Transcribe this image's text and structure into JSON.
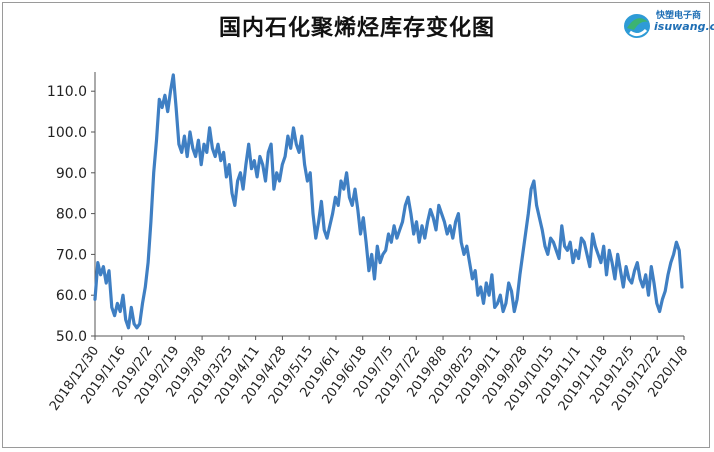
{
  "logo": {
    "cn": "快塑电子商",
    "en": "isuwang.cı"
  },
  "chart_data": {
    "type": "line",
    "title": "国内石化聚烯烃库存变化图",
    "xlabel": "",
    "ylabel": "",
    "ylim": [
      50,
      115
    ],
    "yticks": [
      "110.0",
      "100.0",
      "90.0",
      "80.0",
      "70.0",
      "60.0",
      "50.0"
    ],
    "ytick_values": [
      110,
      100,
      90,
      80,
      70,
      60,
      50
    ],
    "xticks": [
      "2018/12/30",
      "2019/1/16",
      "2019/2/2",
      "2019/2/19",
      "2019/3/8",
      "2019/3/25",
      "2019/4/11",
      "2019/4/28",
      "2019/5/15",
      "2019/6/1",
      "2019/6/18",
      "2019/7/5",
      "2019/7/22",
      "2019/8/8",
      "2019/8/25",
      "2019/9/11",
      "2019/9/28",
      "2019/10/15",
      "2019/11/1",
      "2019/11/18",
      "2019/12/5",
      "2019/12/22",
      "2020/1/8"
    ],
    "series": [
      {
        "color": "#3f7fc3",
        "values": [
          59,
          68,
          65,
          67,
          63,
          66,
          57,
          55,
          58,
          56,
          60,
          54,
          52,
          57,
          53,
          52,
          53,
          58,
          62,
          68,
          78,
          90,
          98,
          108,
          106,
          109,
          105,
          110,
          114,
          106,
          97,
          95,
          99,
          94,
          100,
          96,
          94,
          98,
          92,
          97,
          95,
          101,
          96,
          94,
          97,
          93,
          95,
          89,
          92,
          85,
          82,
          88,
          90,
          86,
          92,
          97,
          91,
          93,
          89,
          94,
          92,
          88,
          95,
          97,
          86,
          90,
          88,
          92,
          94,
          99,
          96,
          101,
          97,
          95,
          99,
          92,
          88,
          90,
          80,
          74,
          78,
          83,
          76,
          74,
          77,
          80,
          84,
          82,
          88,
          86,
          90,
          84,
          82,
          86,
          81,
          75,
          79,
          73,
          66,
          70,
          64,
          72,
          68,
          70,
          71,
          75,
          73,
          77,
          74,
          76,
          78,
          82,
          84,
          80,
          75,
          78,
          73,
          77,
          74,
          78,
          81,
          79,
          76,
          82,
          80,
          78,
          75,
          77,
          74,
          78,
          80,
          73,
          70,
          72,
          68,
          64,
          66,
          60,
          62,
          58,
          63,
          60,
          65,
          57,
          58,
          60,
          56,
          58,
          63,
          61,
          56,
          59,
          65,
          70,
          75,
          80,
          86,
          88,
          82,
          79,
          76,
          72,
          70,
          74,
          73,
          71,
          69,
          77,
          72,
          71,
          73,
          68,
          71,
          69,
          74,
          73,
          70,
          67,
          75,
          72,
          70,
          68,
          72,
          65,
          71,
          68,
          64,
          70,
          66,
          62,
          67,
          64,
          63,
          66,
          68,
          64,
          62,
          65,
          60,
          67,
          63,
          58,
          56,
          59,
          61,
          65,
          68,
          70,
          73,
          71,
          62
        ]
      }
    ]
  }
}
